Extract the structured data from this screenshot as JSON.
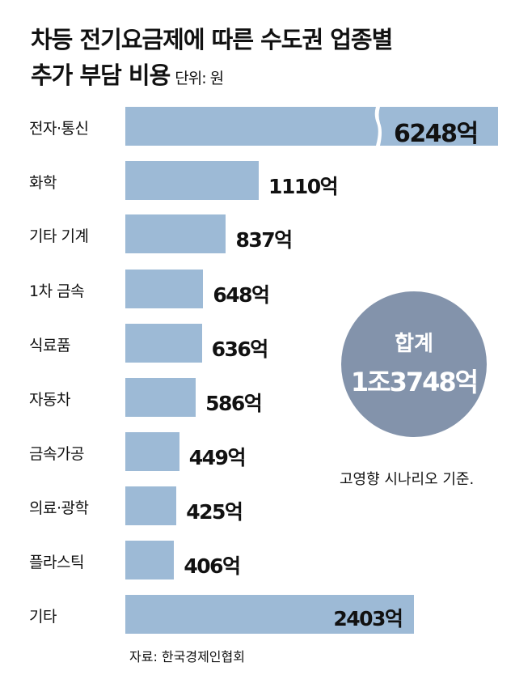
{
  "chart_data": {
    "type": "bar",
    "orientation": "horizontal",
    "title": "차등 전기요금제에 따른 수도권 업종별 추가 부담 비용",
    "title_line1": "차등 전기요금제에 따른 수도권 업종별",
    "title_line2": "추가 부담 비용",
    "unit": "단위: 원",
    "categories": [
      "전자·통신",
      "화학",
      "기타 기계",
      "1차 금속",
      "식료품",
      "자동차",
      "금속가공",
      "의료·광학",
      "플라스틱",
      "기타"
    ],
    "values": [
      6248,
      1110,
      837,
      648,
      636,
      586,
      449,
      425,
      406,
      2403
    ],
    "data_labels": [
      "6248억",
      "1110억",
      "837억",
      "648억",
      "636억",
      "586억",
      "449억",
      "425억",
      "406억",
      "2403억"
    ],
    "broken_axis_bars": [
      "전자·통신"
    ],
    "bar_color": "#9dbad6",
    "total": {
      "label": "합계",
      "value": "1조3748억",
      "color": "#8393ab"
    },
    "note": "고영향 시나리오 기준.",
    "source": "자료: 한국경제인협회"
  }
}
